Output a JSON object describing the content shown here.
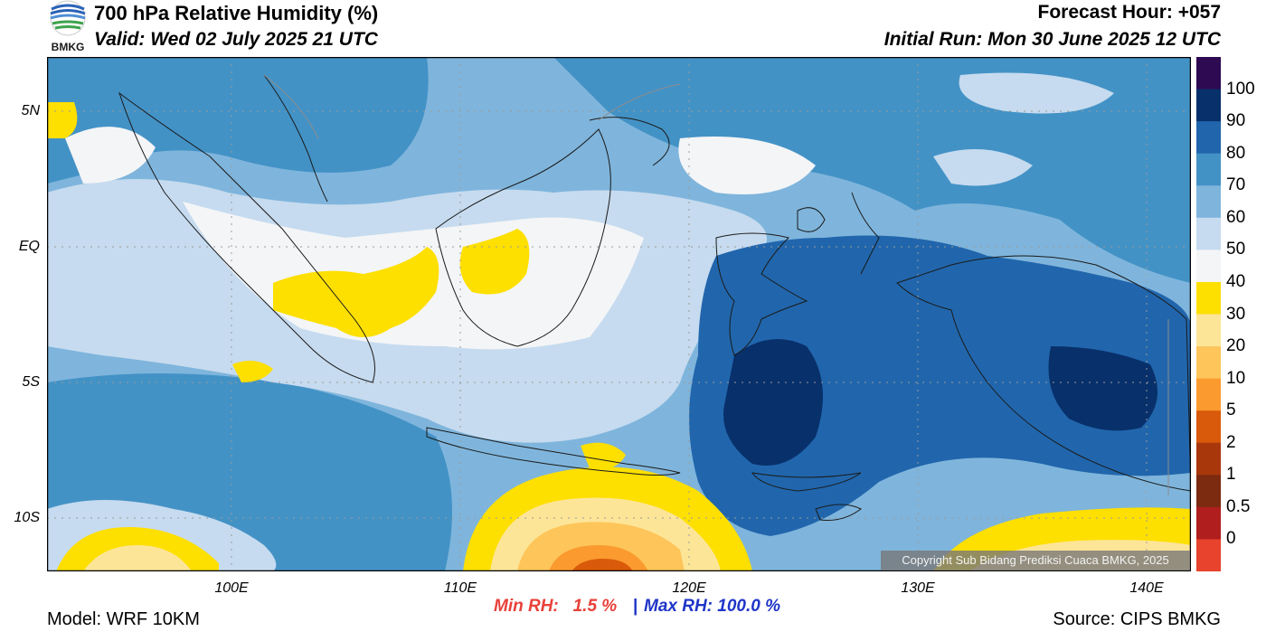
{
  "header": {
    "title": "700 hPa Relative Humidity (%)",
    "valid": "Valid: Wed 02 July 2025 21 UTC",
    "forecast_hour": "Forecast Hour: +057",
    "initial_run": "Initial Run: Mon 30 June 2025 12 UTC",
    "logo_text": "BMKG"
  },
  "map": {
    "lat_labels": [
      "5N",
      "EQ",
      "5S",
      "10S"
    ],
    "lon_labels": [
      "100E",
      "110E",
      "120E",
      "130E",
      "140E"
    ],
    "copyright": "Copyright Sub Bidang Prediksi Cuaca BMKG, 2025"
  },
  "colorbar": {
    "labels": [
      "100",
      "90",
      "80",
      "70",
      "60",
      "50",
      "40",
      "30",
      "20",
      "10",
      "5",
      "2",
      "1",
      "0.5",
      "0"
    ],
    "colors": [
      "#2e0a52",
      "#08306b",
      "#2166ac",
      "#4392c6",
      "#7fb5dc",
      "#c6dbef",
      "#f4f5f7",
      "#fddf00",
      "#fde598",
      "#fdc55a",
      "#fb9a2e",
      "#d95a0a",
      "#a9370c",
      "#7c2a10",
      "#b01e1e",
      "#e8432c"
    ]
  },
  "stats": {
    "min": "Min RH:   1.5 %",
    "separator": "|",
    "max": "Max RH: 100.0 %"
  },
  "footer": {
    "model": "Model: WRF 10KM",
    "source": "Source: CIPS BMKG"
  }
}
